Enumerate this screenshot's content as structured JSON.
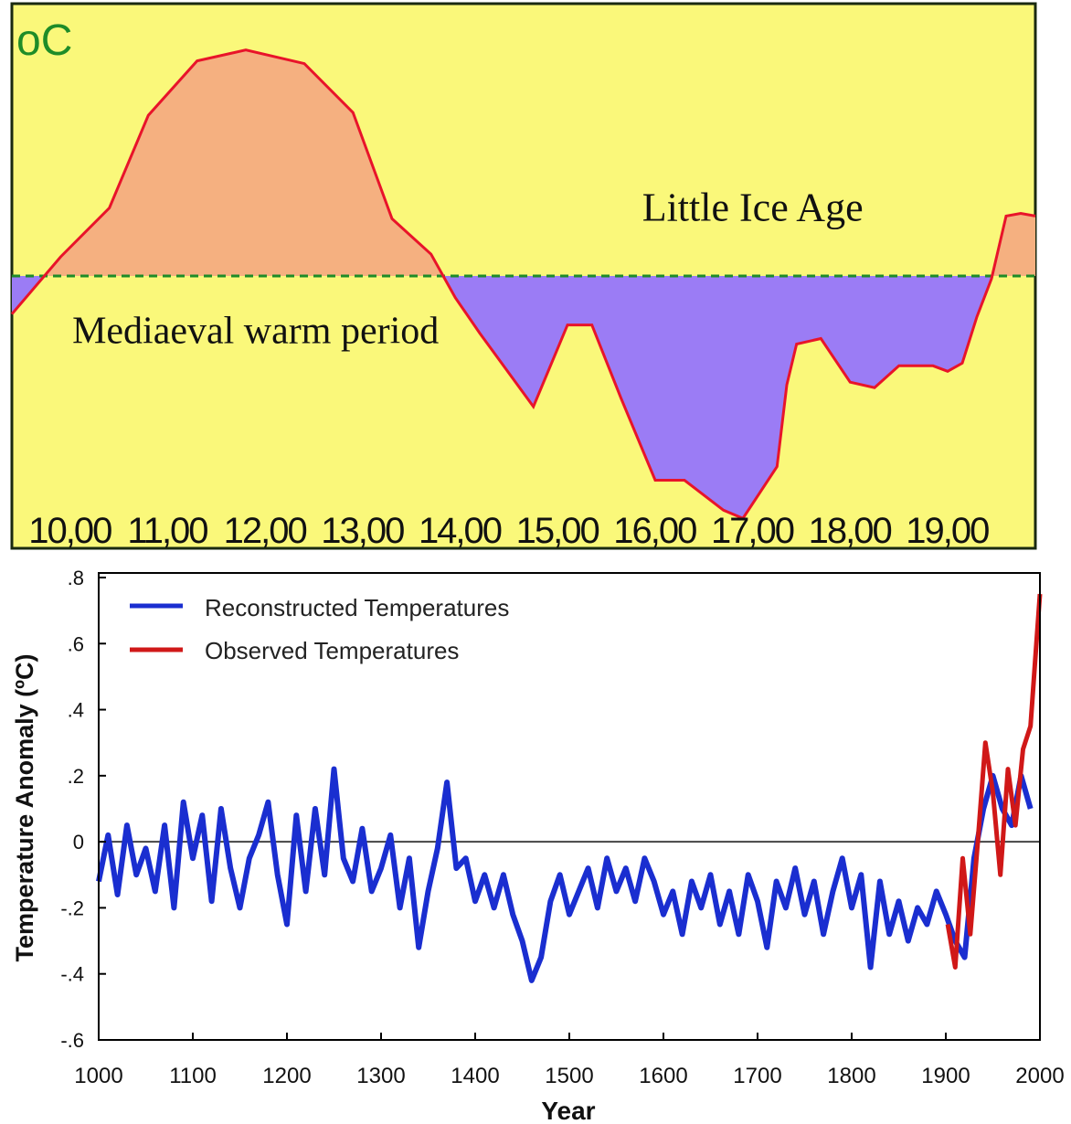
{
  "colors": {
    "top_background": "#FAF87A",
    "warm_fill": "#F5B080",
    "cold_fill": "#9B7CF5",
    "curve": "#E8142A",
    "baseline": "#1E8C28",
    "unit_label": "#1E8C28",
    "recon_series": "#1A2ED0",
    "obs_series": "#D01818",
    "axis": "#000000"
  },
  "chart_data": [
    {
      "type": "area",
      "unit_label": "oC",
      "x_tick_labels": [
        "10,00",
        "11,00",
        "12,00",
        "13,00",
        "14,00",
        "15,00",
        "16,00",
        "17,00",
        "18,00",
        "19,00"
      ],
      "x_ticks": [
        1000,
        1100,
        1200,
        1300,
        1400,
        1500,
        1600,
        1700,
        1800,
        1900
      ],
      "xlim": [
        950,
        2000
      ],
      "ylim": [
        -1.0,
        1.0
      ],
      "baseline": 0,
      "annotations": [
        {
          "text": "Little Ice Age",
          "x": 1710,
          "y": 0.25
        },
        {
          "text": "Mediaeval warm period",
          "x": 1200,
          "y": -0.2
        }
      ],
      "series": [
        {
          "x": [
            950,
            1000,
            1050,
            1090,
            1140,
            1190,
            1250,
            1300,
            1340,
            1380,
            1405,
            1430,
            1485,
            1520,
            1545,
            1575,
            1610,
            1640,
            1680,
            1700,
            1735,
            1745,
            1755,
            1780,
            1810,
            1835,
            1860,
            1895,
            1910,
            1925,
            1940,
            1955,
            1970,
            1985,
            2000
          ],
          "y": [
            -0.14,
            0.07,
            0.25,
            0.59,
            0.79,
            0.83,
            0.78,
            0.6,
            0.21,
            0.08,
            -0.08,
            -0.21,
            -0.48,
            -0.18,
            -0.18,
            -0.45,
            -0.75,
            -0.75,
            -0.86,
            -0.89,
            -0.7,
            -0.4,
            -0.25,
            -0.23,
            -0.39,
            -0.41,
            -0.33,
            -0.33,
            -0.35,
            -0.32,
            -0.15,
            -0.01,
            0.22,
            0.23,
            0.22
          ]
        }
      ]
    },
    {
      "type": "line",
      "xlabel": "Year",
      "ylabel": "Temperature Anomaly (ºC)",
      "xlim": [
        1000,
        2000
      ],
      "ylim": [
        -0.6,
        0.8
      ],
      "x_tick_labels": [
        "1000",
        "1100",
        "1200",
        "1300",
        "1400",
        "1500",
        "1600",
        "1700",
        "1800",
        "1900",
        "2000"
      ],
      "y_tick_labels": [
        ".8",
        ".6",
        ".4",
        ".2",
        "0",
        "-.2",
        "-.4",
        "-.6"
      ],
      "y_ticks": [
        0.8,
        0.6,
        0.4,
        0.2,
        0,
        -0.2,
        -0.4,
        -0.6
      ],
      "legend_position": "top-left",
      "series": [
        {
          "name": "Reconstructed Temperatures",
          "x": [
            1000,
            1010,
            1020,
            1030,
            1040,
            1050,
            1060,
            1070,
            1080,
            1090,
            1100,
            1110,
            1120,
            1130,
            1140,
            1150,
            1160,
            1170,
            1180,
            1190,
            1200,
            1210,
            1220,
            1230,
            1240,
            1250,
            1260,
            1270,
            1280,
            1290,
            1300,
            1310,
            1320,
            1330,
            1340,
            1350,
            1360,
            1370,
            1380,
            1390,
            1400,
            1410,
            1420,
            1430,
            1440,
            1450,
            1460,
            1470,
            1480,
            1490,
            1500,
            1510,
            1520,
            1530,
            1540,
            1550,
            1560,
            1570,
            1580,
            1590,
            1600,
            1610,
            1620,
            1630,
            1640,
            1650,
            1660,
            1670,
            1680,
            1690,
            1700,
            1710,
            1720,
            1730,
            1740,
            1750,
            1760,
            1770,
            1780,
            1790,
            1800,
            1810,
            1820,
            1830,
            1840,
            1850,
            1860,
            1870,
            1880,
            1890,
            1900,
            1910,
            1920,
            1930,
            1940,
            1950,
            1960,
            1970,
            1980,
            1990
          ],
          "y": [
            -0.12,
            0.02,
            -0.16,
            0.05,
            -0.1,
            -0.02,
            -0.15,
            0.05,
            -0.2,
            0.12,
            -0.05,
            0.08,
            -0.18,
            0.1,
            -0.08,
            -0.2,
            -0.05,
            0.02,
            0.12,
            -0.1,
            -0.25,
            0.08,
            -0.15,
            0.1,
            -0.1,
            0.22,
            -0.05,
            -0.12,
            0.04,
            -0.15,
            -0.08,
            0.02,
            -0.2,
            -0.05,
            -0.32,
            -0.15,
            -0.02,
            0.18,
            -0.08,
            -0.05,
            -0.18,
            -0.1,
            -0.2,
            -0.1,
            -0.22,
            -0.3,
            -0.42,
            -0.35,
            -0.18,
            -0.1,
            -0.22,
            -0.15,
            -0.08,
            -0.2,
            -0.05,
            -0.15,
            -0.08,
            -0.18,
            -0.05,
            -0.12,
            -0.22,
            -0.15,
            -0.28,
            -0.12,
            -0.2,
            -0.1,
            -0.25,
            -0.15,
            -0.28,
            -0.1,
            -0.18,
            -0.32,
            -0.12,
            -0.2,
            -0.08,
            -0.22,
            -0.12,
            -0.28,
            -0.15,
            -0.05,
            -0.2,
            -0.1,
            -0.38,
            -0.12,
            -0.28,
            -0.18,
            -0.3,
            -0.2,
            -0.25,
            -0.15,
            -0.22,
            -0.3,
            -0.35,
            -0.05,
            0.1,
            0.2,
            0.1,
            0.05,
            0.2,
            0.1
          ]
        },
        {
          "name": "Observed Temperatures",
          "x": [
            1902,
            1910,
            1918,
            1926,
            1934,
            1942,
            1950,
            1958,
            1966,
            1974,
            1982,
            1990,
            1995,
            2000
          ],
          "y": [
            -0.25,
            -0.38,
            -0.05,
            -0.28,
            0.0,
            0.3,
            0.15,
            -0.1,
            0.22,
            0.05,
            0.28,
            0.35,
            0.55,
            0.75
          ]
        }
      ]
    }
  ]
}
